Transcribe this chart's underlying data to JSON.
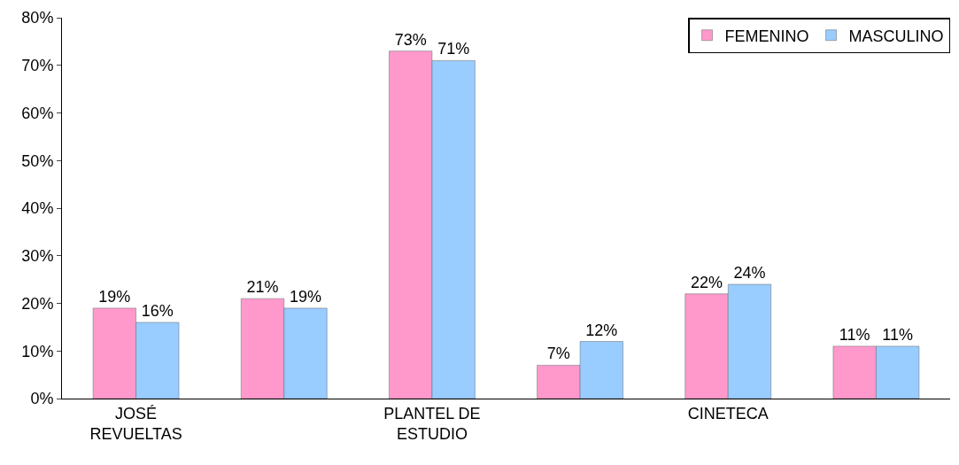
{
  "chart_data": {
    "type": "bar",
    "categories": [
      "JOSÉ REVUELTAS",
      null,
      "PLANTEL DE ESTUDIO",
      null,
      "CINETECA",
      null
    ],
    "series": [
      {
        "name": "FEMENINO",
        "color": "#ff99cc",
        "values": [
          19,
          21,
          73,
          7,
          22,
          11
        ],
        "value_labels": [
          "19%",
          "21%",
          "73%",
          "7%",
          "22%",
          "11%"
        ]
      },
      {
        "name": "MASCULINO",
        "color": "#99ccff",
        "values": [
          16,
          19,
          71,
          12,
          24,
          11
        ],
        "value_labels": [
          "16%",
          "19%",
          "71%",
          "12%",
          "24%",
          "11%"
        ]
      }
    ],
    "ylim": [
      0,
      80
    ],
    "yticks": [
      {
        "value": 0,
        "label": "0%"
      },
      {
        "value": 10,
        "label": "10%"
      },
      {
        "value": 20,
        "label": "20%"
      },
      {
        "value": 30,
        "label": "30%"
      },
      {
        "value": 40,
        "label": "40%"
      },
      {
        "value": 50,
        "label": "50%"
      },
      {
        "value": 60,
        "label": "60%"
      },
      {
        "value": 70,
        "label": "70%"
      },
      {
        "value": 80,
        "label": "80%"
      }
    ],
    "legend": "top right"
  }
}
